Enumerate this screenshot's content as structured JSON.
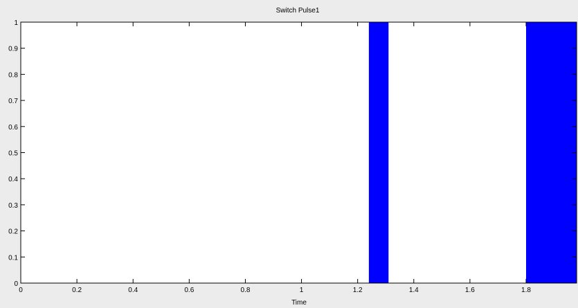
{
  "chart_data": {
    "type": "area",
    "title": "Switch Pulse1",
    "xlabel": "Time",
    "ylabel": "",
    "xlim": [
      0,
      1.98
    ],
    "ylim": [
      0,
      1
    ],
    "xticks": [
      0,
      0.2,
      0.4,
      0.6,
      0.8,
      1,
      1.2,
      1.4,
      1.6,
      1.8
    ],
    "xtick_labels": [
      "0",
      "0.2",
      "0.4",
      "0.6",
      "0.8",
      "1",
      "1.2",
      "1.4",
      "1.6",
      "1.8"
    ],
    "yticks": [
      0,
      0.1,
      0.2,
      0.3,
      0.4,
      0.5,
      0.6,
      0.7,
      0.8,
      0.9,
      1
    ],
    "ytick_labels": [
      "0",
      "0.1",
      "0.2",
      "0.3",
      "0.4",
      "0.5",
      "0.6",
      "0.7",
      "0.8",
      "0.9",
      "1"
    ],
    "grid": false,
    "series": [
      {
        "color": "#0000ff",
        "pulses": [
          {
            "start": 1.24,
            "end": 1.31,
            "value": 1
          },
          {
            "start": 1.8,
            "end": 1.98,
            "value": 1
          }
        ]
      }
    ]
  },
  "colors": {
    "figure_background": "#ececec",
    "axes_background": "#ffffff",
    "pulse_fill": "#0000ff"
  }
}
